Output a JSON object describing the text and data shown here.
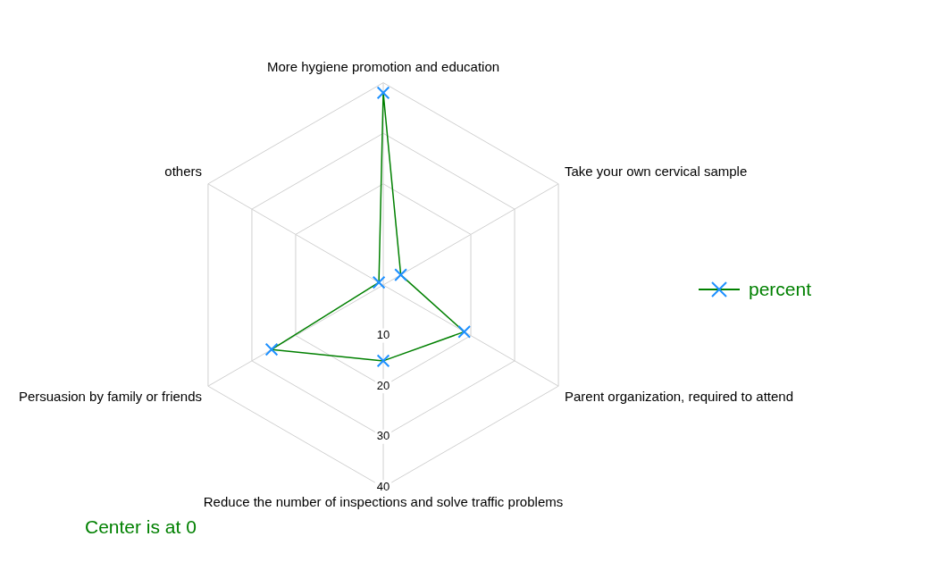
{
  "chart_data": {
    "type": "radar",
    "categories": [
      "More hygiene promotion and education",
      "Take your own cervical sample",
      "Parent organization, required to attend",
      "Reduce the number of inspections and solve traffic problems",
      "Persuasion by family or friends",
      "others"
    ],
    "series": [
      {
        "name": "percent",
        "color": "#008000",
        "colors": [
          "#1e90ff",
          "#1e90ff",
          "#1e90ff",
          "#1e90ff",
          "#1e90ff",
          "#1e90ff"
        ],
        "values": [
          38,
          4,
          18.5,
          15,
          25.5,
          1
        ]
      }
    ],
    "ylim": [
      0,
      40
    ],
    "yticks": [
      10,
      20,
      30,
      40
    ],
    "marker": "cross",
    "legend": "right",
    "grid": true,
    "annotations": [
      "Center is at 0"
    ]
  }
}
